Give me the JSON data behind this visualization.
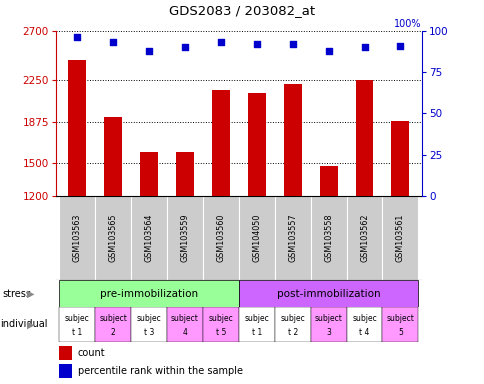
{
  "title": "GDS2083 / 203082_at",
  "samples": [
    "GSM103563",
    "GSM103565",
    "GSM103564",
    "GSM103559",
    "GSM103560",
    "GSM104050",
    "GSM103557",
    "GSM103558",
    "GSM103562",
    "GSM103561"
  ],
  "counts": [
    2430,
    1920,
    1595,
    1595,
    2160,
    2130,
    2220,
    1470,
    2250,
    1880
  ],
  "percentiles": [
    96,
    93,
    88,
    90,
    93,
    92,
    92,
    88,
    90,
    91
  ],
  "bar_color": "#cc0000",
  "dot_color": "#0000cc",
  "ylim_left": [
    1200,
    2700
  ],
  "ylim_right": [
    0,
    100
  ],
  "yticks_left": [
    1200,
    1500,
    1875,
    2250,
    2700
  ],
  "yticks_right": [
    0,
    25,
    50,
    75,
    100
  ],
  "stress_labels": [
    "pre-immobilization",
    "post-immobilization"
  ],
  "stress_colors": [
    "#99ff99",
    "#cc66ff"
  ],
  "stress_ranges": [
    [
      0,
      4
    ],
    [
      5,
      9
    ]
  ],
  "individual_colors": [
    "#ffffff",
    "#ff99ff",
    "#ffffff",
    "#ff99ff",
    "#ff99ff",
    "#ffffff",
    "#ffffff",
    "#ff99ff",
    "#ffffff",
    "#ff99ff"
  ],
  "indiv_line1": [
    "subjec",
    "subject",
    "subjec",
    "subject",
    "subjec",
    "subjec",
    "subjec",
    "subject",
    "subjec",
    "subject"
  ],
  "indiv_line2": [
    "t 1",
    "2",
    "t 3",
    "4",
    "t 5",
    "t 1",
    "t 2",
    "3",
    "t 4",
    "5"
  ],
  "legend_count_color": "#cc0000",
  "legend_dot_color": "#0000cc",
  "sample_bg_color": "#cccccc",
  "bar_width": 0.5
}
